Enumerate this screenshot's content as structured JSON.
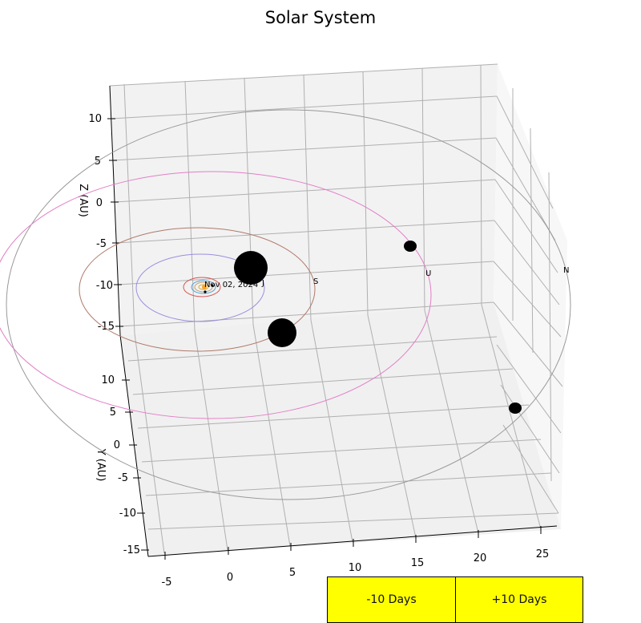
{
  "window": {
    "title": "Solar System"
  },
  "controls": {
    "back_label": "-10 Days",
    "forward_label": "+10 Days"
  },
  "date_label": "Nov 02, 2024",
  "planet_labels": {
    "jupiter": "J",
    "saturn": "S",
    "uranus": "U",
    "neptune": "N"
  },
  "axes": {
    "x": {
      "ticks": [
        "-5",
        "0",
        "5",
        "10",
        "15",
        "20",
        "25"
      ]
    },
    "y": {
      "label": "Y (AU)",
      "ticks": [
        "10",
        "5",
        "0",
        "-5",
        "-10",
        "-15"
      ]
    },
    "z": {
      "label": "Z (AU)",
      "ticks": [
        "10",
        "5",
        "0",
        "-5",
        "-10",
        "-15"
      ]
    }
  },
  "colors": {
    "pane": "#f2f2f2",
    "grid": "#b0b0b0",
    "button": "#ffff00",
    "orbit_mercury": "#e0b040",
    "orbit_venus": "#c8a070",
    "orbit_earth": "#4fa3d9",
    "orbit_mars": "#d9534f",
    "orbit_jupiter": "#9a8fe0",
    "orbit_saturn": "#b07a6a",
    "orbit_uranus": "#e27fc6",
    "orbit_neptune": "#999999",
    "body": "#000000",
    "sun": "#f5a623"
  }
}
